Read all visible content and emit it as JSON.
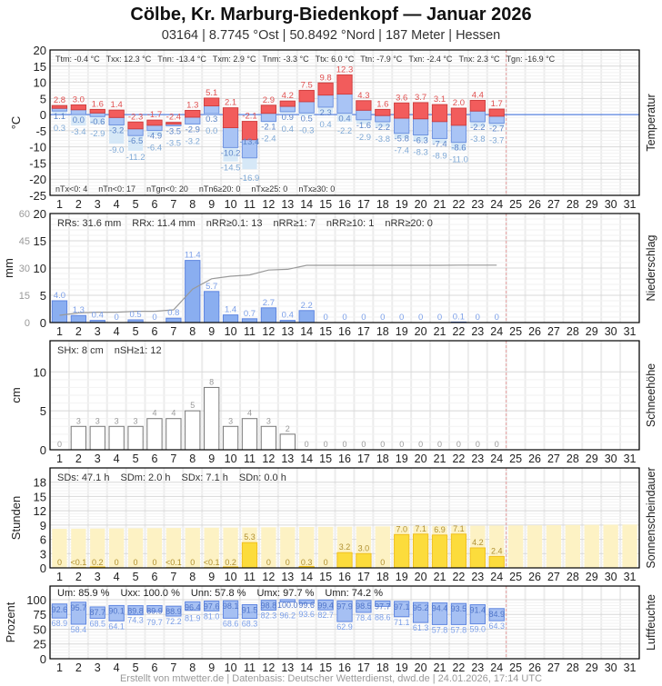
{
  "header": {
    "title": "Cölbe, Kr. Marburg-Biedenkopf  —  Januar 2026",
    "subtitle": "03164  |  8.7745 °Ost  |  50.8492 °Nord  |  187 Meter  |  Hessen"
  },
  "footer": "Erstellt von mtwetter.de | Datenbasis: Deutscher Wetterdienst, dwd.de | 24.01.2026, 17:14 UTC",
  "colors": {
    "tmax": "#f25c5c",
    "tmin": "#a9c4f5",
    "tground": "#d6e8f7",
    "precip": "#8aaef0",
    "sun": "#fcdc3c",
    "sun_possible": "#fdf2c4",
    "humidity": "#a6c0f3",
    "today_line": "#e8a0a0",
    "cum_line": "#999999"
  },
  "chart_data": [
    {
      "type": "bar",
      "panel": "temperature",
      "ylabel": "°C",
      "side_label": "Temperatur",
      "ylim": [
        -25,
        20
      ],
      "yticks": [
        20,
        15,
        10,
        5,
        0,
        -5,
        -10,
        -15,
        -20,
        -25
      ],
      "categories": [
        1,
        2,
        3,
        4,
        5,
        6,
        7,
        8,
        9,
        10,
        11,
        12,
        13,
        14,
        15,
        16,
        17,
        18,
        19,
        20,
        21,
        22,
        23,
        24,
        25,
        26,
        27,
        28,
        29,
        30,
        31
      ],
      "tmax": [
        2.8,
        3.0,
        1.6,
        1.4,
        -2.3,
        -1.7,
        -2.4,
        1.3,
        5.1,
        2.1,
        -2.1,
        2.9,
        4.2,
        7.5,
        9.8,
        12.3,
        4.3,
        1.6,
        3.6,
        3.7,
        3.1,
        2.0,
        4.4,
        1.7
      ],
      "tmin": [
        1.1,
        0.0,
        -0.6,
        -3.2,
        -6.5,
        -4.9,
        -3.5,
        -2.9,
        0.3,
        -10.2,
        -13.4,
        -2.1,
        0.9,
        0.5,
        2.3,
        0.4,
        -1.6,
        -2.2,
        -5.8,
        -6.3,
        -7.4,
        -8.6,
        -2.2,
        -2.7
      ],
      "tground": [
        0.3,
        -3.4,
        -2.9,
        -9.0,
        -11.2,
        -6.4,
        -3.5,
        -3.2,
        0.0,
        -14.5,
        -16.9,
        -2.4,
        0.4,
        -0.3,
        0.4,
        -2.2,
        -2.9,
        -3.8,
        -7.4,
        -8.3,
        -8.9,
        -11.0,
        -3.8,
        -3.7
      ],
      "stats_top": [
        "Ttm: -0.4 °C",
        "Txx: 12.3 °C",
        "Tnn: -13.4 °C",
        "Txm: 2.9 °C",
        "Tnm: -3.3 °C",
        "Ttx: 6.0 °C",
        "Ttn: -7.9 °C",
        "Txn: -2.4 °C",
        "Tnx: 2.3 °C",
        "Tgn: -16.9 °C"
      ],
      "stats_bottom": [
        "nTx<0: 4",
        "nTn<0: 17",
        "nTgn<0: 20",
        "nTn6≥20: 0",
        "nTx≥25: 0",
        "nTx≥30: 0"
      ]
    },
    {
      "type": "bar",
      "panel": "precipitation",
      "ylabel": "mm",
      "side_label": "Niederschlag",
      "ylim": [
        0,
        20
      ],
      "yticks": [
        0,
        5,
        10,
        15,
        20
      ],
      "y2lim": [
        0,
        60
      ],
      "y2ticks": [
        0,
        15,
        30,
        45,
        60
      ],
      "values": [
        4.0,
        1.3,
        0.4,
        0,
        0.5,
        0,
        0.8,
        11.4,
        5.7,
        1.4,
        0.7,
        2.7,
        0.4,
        2.2,
        0,
        0,
        0,
        0,
        0,
        0,
        0,
        0.1,
        0,
        0
      ],
      "cumulative_line": true,
      "stats": [
        "RRs: 31.6 mm",
        "RRx: 11.4 mm",
        "nRR≥0.1: 13",
        "nRR≥1: 7",
        "nRR≥10: 1",
        "nRR≥20: 0"
      ]
    },
    {
      "type": "bar",
      "panel": "snow",
      "ylabel": "cm",
      "side_label": "Schneehöhe",
      "ylim": [
        0,
        14
      ],
      "yticks": [
        0,
        5,
        10
      ],
      "values": [
        0,
        3,
        3,
        3,
        3,
        4,
        4,
        5,
        8,
        3,
        4,
        3,
        2,
        0,
        0,
        0,
        0,
        0,
        0,
        0,
        0,
        0,
        0,
        0
      ],
      "stats": [
        "SHx: 8 cm",
        "nSH≥1: 12"
      ]
    },
    {
      "type": "bar",
      "panel": "sunshine",
      "ylabel": "Stunden",
      "side_label": "Sonnenscheindauer",
      "ylim": [
        0,
        21
      ],
      "yticks": [
        0,
        3,
        6,
        9,
        12,
        15,
        18
      ],
      "values": [
        0,
        0.05,
        0.2,
        0,
        0,
        0,
        0.05,
        0,
        0.05,
        0.2,
        5.3,
        0,
        0,
        0.3,
        0,
        3.2,
        3.0,
        0,
        7.0,
        7.1,
        6.9,
        7.1,
        4.2,
        2.4
      ],
      "labels": [
        "0",
        "<0.1",
        "0.2",
        "0",
        "0",
        "0",
        "<0.1",
        "0",
        "<0.1",
        "0.2",
        "5.3",
        "0",
        "0",
        "0.3",
        "0",
        "3.2",
        "3.0",
        "0",
        "7.0",
        "7.1",
        "6.9",
        "7.1",
        "4.2",
        "2.4"
      ],
      "stats": [
        "SDs: 47.1 h",
        "SDm: 2.0 h",
        "SDx: 7.1 h",
        "SDn: 0.0 h"
      ]
    },
    {
      "type": "bar",
      "panel": "humidity",
      "ylabel": "Prozent",
      "side_label": "Luftfeuchte",
      "ylim": [
        0,
        123
      ],
      "yticks": [
        0,
        25,
        50,
        75,
        100
      ],
      "umax": [
        92.6,
        95.7,
        87.7,
        90.1,
        89.8,
        89.9,
        88.9,
        96.4,
        97.6,
        98.1,
        91.5,
        98.8,
        100.0,
        99.6,
        99.4,
        97.9,
        98.5,
        97.7,
        97.1,
        95.2,
        94.4,
        93.5,
        91.4,
        84.9
      ],
      "umin": [
        68.9,
        58.4,
        68.5,
        64.1,
        74.3,
        79.7,
        72.2,
        81.9,
        81.0,
        68.6,
        68.3,
        82.3,
        96.2,
        93.6,
        82.7,
        62.9,
        78.4,
        88.6,
        71.1,
        61.3,
        57.8,
        57.8,
        59.0,
        64.3
      ],
      "stats": [
        "Um: 85.9 %",
        "Uxx: 100.0 %",
        "Unn: 57.8 %",
        "Umx: 97.7 %",
        "Umn: 74.2 %"
      ]
    }
  ]
}
